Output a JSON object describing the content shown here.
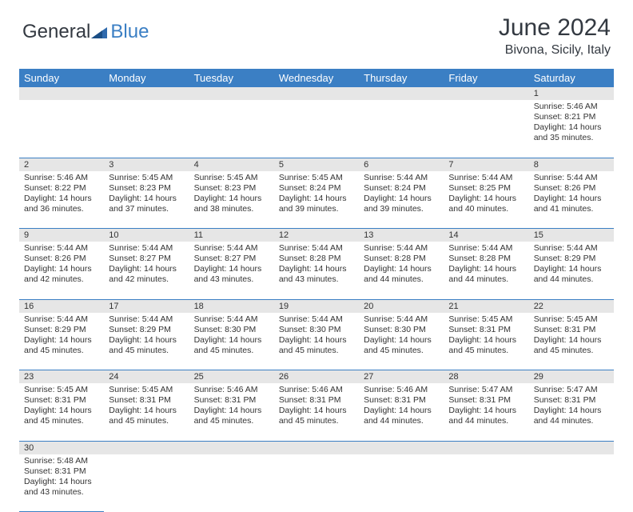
{
  "logo": {
    "textA": "General",
    "textB": "Blue"
  },
  "title": "June 2024",
  "location": "Bivona, Sicily, Italy",
  "colors": {
    "header_bg": "#3b7fc4",
    "header_text": "#ffffff",
    "daynum_bg": "#e6e6e6",
    "border": "#3b7fc4",
    "text": "#333333"
  },
  "day_headers": [
    "Sunday",
    "Monday",
    "Tuesday",
    "Wednesday",
    "Thursday",
    "Friday",
    "Saturday"
  ],
  "weeks": [
    [
      null,
      null,
      null,
      null,
      null,
      null,
      {
        "n": "1",
        "sr": "5:46 AM",
        "ss": "8:21 PM",
        "dl": "14 hours and 35 minutes."
      }
    ],
    [
      {
        "n": "2",
        "sr": "5:46 AM",
        "ss": "8:22 PM",
        "dl": "14 hours and 36 minutes."
      },
      {
        "n": "3",
        "sr": "5:45 AM",
        "ss": "8:23 PM",
        "dl": "14 hours and 37 minutes."
      },
      {
        "n": "4",
        "sr": "5:45 AM",
        "ss": "8:23 PM",
        "dl": "14 hours and 38 minutes."
      },
      {
        "n": "5",
        "sr": "5:45 AM",
        "ss": "8:24 PM",
        "dl": "14 hours and 39 minutes."
      },
      {
        "n": "6",
        "sr": "5:44 AM",
        "ss": "8:24 PM",
        "dl": "14 hours and 39 minutes."
      },
      {
        "n": "7",
        "sr": "5:44 AM",
        "ss": "8:25 PM",
        "dl": "14 hours and 40 minutes."
      },
      {
        "n": "8",
        "sr": "5:44 AM",
        "ss": "8:26 PM",
        "dl": "14 hours and 41 minutes."
      }
    ],
    [
      {
        "n": "9",
        "sr": "5:44 AM",
        "ss": "8:26 PM",
        "dl": "14 hours and 42 minutes."
      },
      {
        "n": "10",
        "sr": "5:44 AM",
        "ss": "8:27 PM",
        "dl": "14 hours and 42 minutes."
      },
      {
        "n": "11",
        "sr": "5:44 AM",
        "ss": "8:27 PM",
        "dl": "14 hours and 43 minutes."
      },
      {
        "n": "12",
        "sr": "5:44 AM",
        "ss": "8:28 PM",
        "dl": "14 hours and 43 minutes."
      },
      {
        "n": "13",
        "sr": "5:44 AM",
        "ss": "8:28 PM",
        "dl": "14 hours and 44 minutes."
      },
      {
        "n": "14",
        "sr": "5:44 AM",
        "ss": "8:28 PM",
        "dl": "14 hours and 44 minutes."
      },
      {
        "n": "15",
        "sr": "5:44 AM",
        "ss": "8:29 PM",
        "dl": "14 hours and 44 minutes."
      }
    ],
    [
      {
        "n": "16",
        "sr": "5:44 AM",
        "ss": "8:29 PM",
        "dl": "14 hours and 45 minutes."
      },
      {
        "n": "17",
        "sr": "5:44 AM",
        "ss": "8:29 PM",
        "dl": "14 hours and 45 minutes."
      },
      {
        "n": "18",
        "sr": "5:44 AM",
        "ss": "8:30 PM",
        "dl": "14 hours and 45 minutes."
      },
      {
        "n": "19",
        "sr": "5:44 AM",
        "ss": "8:30 PM",
        "dl": "14 hours and 45 minutes."
      },
      {
        "n": "20",
        "sr": "5:44 AM",
        "ss": "8:30 PM",
        "dl": "14 hours and 45 minutes."
      },
      {
        "n": "21",
        "sr": "5:45 AM",
        "ss": "8:31 PM",
        "dl": "14 hours and 45 minutes."
      },
      {
        "n": "22",
        "sr": "5:45 AM",
        "ss": "8:31 PM",
        "dl": "14 hours and 45 minutes."
      }
    ],
    [
      {
        "n": "23",
        "sr": "5:45 AM",
        "ss": "8:31 PM",
        "dl": "14 hours and 45 minutes."
      },
      {
        "n": "24",
        "sr": "5:45 AM",
        "ss": "8:31 PM",
        "dl": "14 hours and 45 minutes."
      },
      {
        "n": "25",
        "sr": "5:46 AM",
        "ss": "8:31 PM",
        "dl": "14 hours and 45 minutes."
      },
      {
        "n": "26",
        "sr": "5:46 AM",
        "ss": "8:31 PM",
        "dl": "14 hours and 45 minutes."
      },
      {
        "n": "27",
        "sr": "5:46 AM",
        "ss": "8:31 PM",
        "dl": "14 hours and 44 minutes."
      },
      {
        "n": "28",
        "sr": "5:47 AM",
        "ss": "8:31 PM",
        "dl": "14 hours and 44 minutes."
      },
      {
        "n": "29",
        "sr": "5:47 AM",
        "ss": "8:31 PM",
        "dl": "14 hours and 44 minutes."
      }
    ],
    [
      {
        "n": "30",
        "sr": "5:48 AM",
        "ss": "8:31 PM",
        "dl": "14 hours and 43 minutes."
      },
      null,
      null,
      null,
      null,
      null,
      null
    ]
  ],
  "labels": {
    "sunrise": "Sunrise:",
    "sunset": "Sunset:",
    "daylight": "Daylight:"
  }
}
